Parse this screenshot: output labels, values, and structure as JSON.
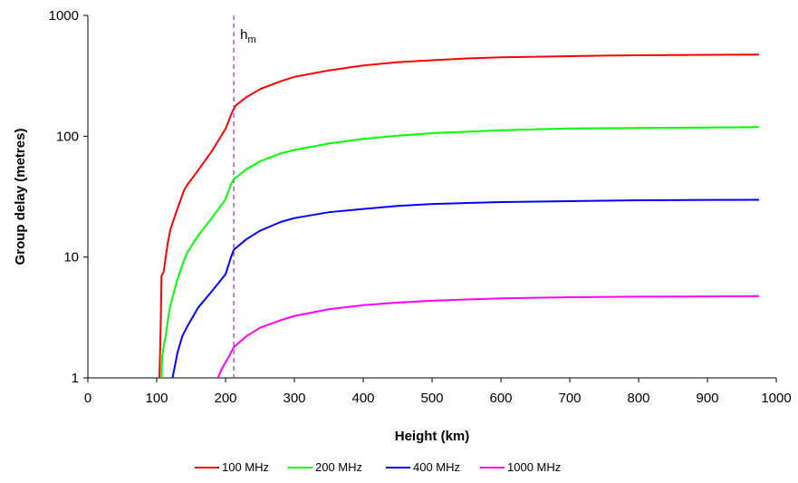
{
  "chart_data": {
    "type": "line",
    "title": "",
    "xlabel": "Height (km)",
    "ylabel": "Group delay (metres)",
    "xlim": [
      0,
      1000
    ],
    "ylim": [
      1,
      1000
    ],
    "yscale": "log",
    "grid": false,
    "legend_position": "bottom",
    "x_ticks": [
      "0",
      "100",
      "200",
      "300",
      "400",
      "500",
      "600",
      "700",
      "800",
      "900",
      "1000"
    ],
    "y_ticks": [
      "1",
      "10",
      "100",
      "1000"
    ],
    "x_tick_values": [
      0,
      100,
      200,
      300,
      400,
      500,
      600,
      700,
      800,
      900,
      1000
    ],
    "y_tick_values": [
      1,
      10,
      100,
      1000
    ],
    "annotation": {
      "label_main": "h",
      "label_sub": "m",
      "x": 212,
      "color": "#9933cc"
    },
    "series": [
      {
        "name": "100 MHz",
        "color": "#ff0000",
        "points": [
          [
            104,
            1
          ],
          [
            106,
            3
          ],
          [
            107,
            7
          ],
          [
            110,
            7.5
          ],
          [
            112,
            9
          ],
          [
            116,
            13
          ],
          [
            120,
            17
          ],
          [
            130,
            25
          ],
          [
            140,
            36
          ],
          [
            145,
            40
          ],
          [
            160,
            52
          ],
          [
            180,
            75
          ],
          [
            200,
            115
          ],
          [
            210,
            160
          ],
          [
            215,
            180
          ],
          [
            230,
            210
          ],
          [
            250,
            245
          ],
          [
            280,
            285
          ],
          [
            300,
            310
          ],
          [
            350,
            350
          ],
          [
            400,
            385
          ],
          [
            450,
            410
          ],
          [
            500,
            425
          ],
          [
            550,
            440
          ],
          [
            600,
            450
          ],
          [
            650,
            455
          ],
          [
            700,
            460
          ],
          [
            750,
            465
          ],
          [
            800,
            468
          ],
          [
            850,
            470
          ],
          [
            900,
            472
          ],
          [
            975,
            474
          ]
        ]
      },
      {
        "name": "200 MHz",
        "color": "#00ff00",
        "points": [
          [
            107,
            1
          ],
          [
            108,
            1.5
          ],
          [
            110,
            1.8
          ],
          [
            113,
            2.2
          ],
          [
            117,
            3.2
          ],
          [
            120,
            4
          ],
          [
            130,
            6.5
          ],
          [
            140,
            9.5
          ],
          [
            145,
            11
          ],
          [
            160,
            15
          ],
          [
            180,
            21
          ],
          [
            200,
            30
          ],
          [
            208,
            40
          ],
          [
            212,
            44
          ],
          [
            230,
            53
          ],
          [
            250,
            62
          ],
          [
            280,
            72
          ],
          [
            300,
            77
          ],
          [
            350,
            87
          ],
          [
            400,
            95
          ],
          [
            450,
            101
          ],
          [
            500,
            106
          ],
          [
            550,
            109
          ],
          [
            600,
            112
          ],
          [
            650,
            114
          ],
          [
            700,
            116
          ],
          [
            800,
            117
          ],
          [
            900,
            118
          ],
          [
            975,
            119
          ]
        ]
      },
      {
        "name": "400 MHz",
        "color": "#0000ff",
        "points": [
          [
            123,
            1
          ],
          [
            127,
            1.3
          ],
          [
            130,
            1.6
          ],
          [
            137,
            2.2
          ],
          [
            145,
            2.7
          ],
          [
            160,
            3.8
          ],
          [
            180,
            5.2
          ],
          [
            200,
            7.2
          ],
          [
            208,
            10
          ],
          [
            212,
            11.5
          ],
          [
            230,
            14
          ],
          [
            250,
            16.5
          ],
          [
            280,
            19.5
          ],
          [
            300,
            21
          ],
          [
            350,
            23.5
          ],
          [
            400,
            25
          ],
          [
            450,
            26.5
          ],
          [
            500,
            27.5
          ],
          [
            550,
            28
          ],
          [
            600,
            28.5
          ],
          [
            700,
            29
          ],
          [
            800,
            29.5
          ],
          [
            900,
            29.7
          ],
          [
            975,
            29.8
          ]
        ]
      },
      {
        "name": "1000 MHz",
        "color": "#ff00ff",
        "points": [
          [
            189,
            1
          ],
          [
            195,
            1.2
          ],
          [
            205,
            1.5
          ],
          [
            212,
            1.8
          ],
          [
            230,
            2.2
          ],
          [
            250,
            2.6
          ],
          [
            280,
            3
          ],
          [
            300,
            3.25
          ],
          [
            350,
            3.7
          ],
          [
            400,
            4
          ],
          [
            450,
            4.2
          ],
          [
            500,
            4.35
          ],
          [
            550,
            4.45
          ],
          [
            600,
            4.55
          ],
          [
            700,
            4.65
          ],
          [
            800,
            4.7
          ],
          [
            900,
            4.72
          ],
          [
            975,
            4.75
          ]
        ]
      }
    ]
  }
}
